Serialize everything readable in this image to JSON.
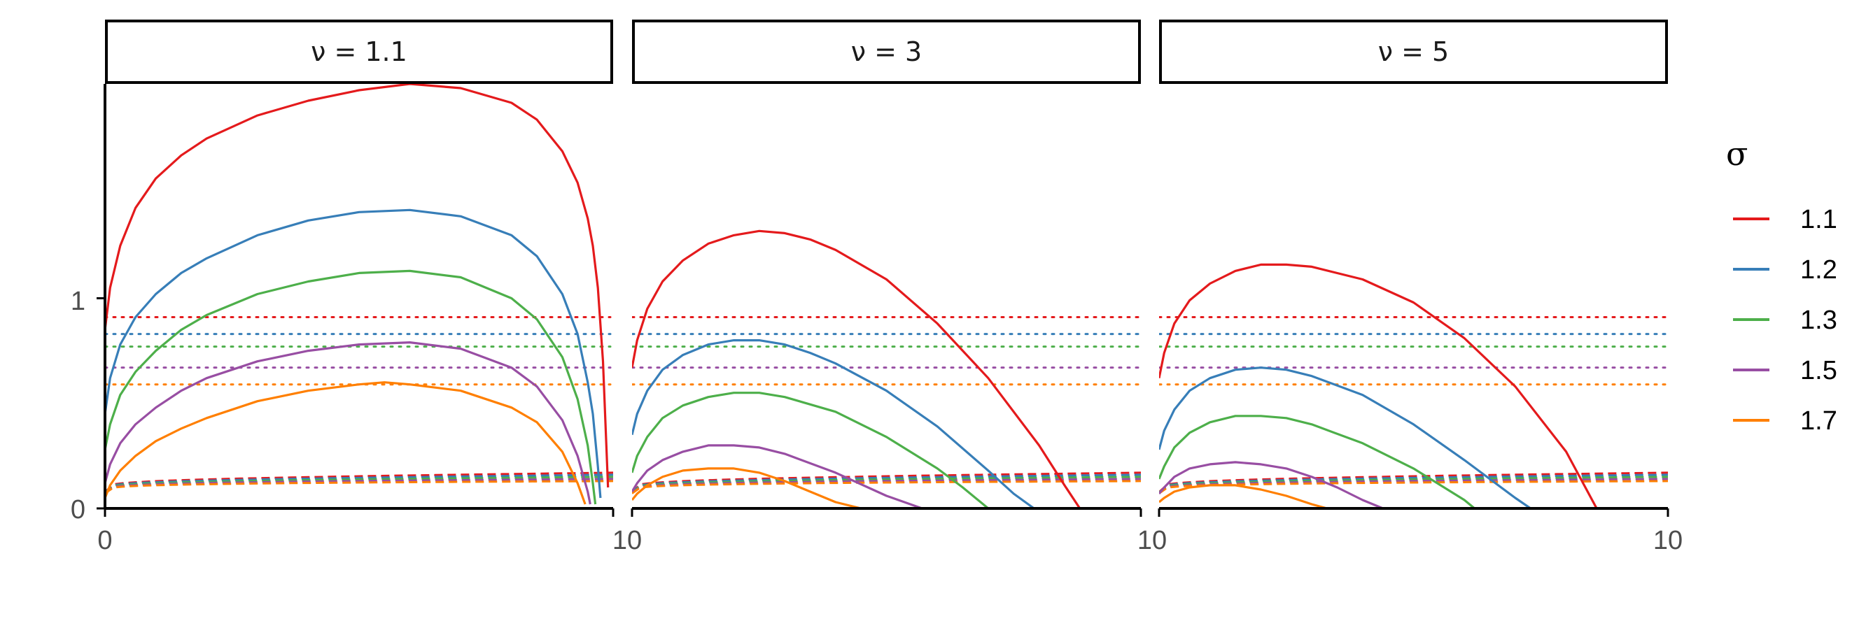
{
  "chart_data": {
    "type": "line",
    "panels": [
      {
        "label": "ν = 1.1",
        "nu": 1.1
      },
      {
        "label": "ν = 3",
        "nu": 3
      },
      {
        "label": "ν = 5",
        "nu": 5
      }
    ],
    "x_ticks_shared": [
      "0",
      "10",
      "10",
      "10",
      "1"
    ],
    "y_ticks": [
      {
        "value": 0,
        "label": "0"
      },
      {
        "value": 1,
        "label": "1"
      }
    ],
    "ylim": [
      0,
      2.02
    ],
    "xlim": [
      0,
      1
    ],
    "legend": {
      "title": "σ",
      "position": "right",
      "entries": [
        {
          "label": "1.1",
          "color": "#E41A1C"
        },
        {
          "label": "1.2",
          "color": "#377EB8"
        },
        {
          "label": "1.3",
          "color": "#4DAF4A"
        },
        {
          "label": "1.5",
          "color": "#984EA3"
        },
        {
          "label": "1.7",
          "color": "#FF7F00"
        }
      ]
    },
    "line_types": [
      "solid",
      "dashed",
      "dotted"
    ],
    "dotted_levels": [
      0.91,
      0.83,
      0.77,
      0.67,
      0.59
    ],
    "dashed_end_values": [
      0.17,
      0.16,
      0.15,
      0.14,
      0.13
    ],
    "series": [
      {
        "panel": 0,
        "sigma": "1.1",
        "style": "solid",
        "x": [
          0.0,
          0.01,
          0.03,
          0.06,
          0.1,
          0.15,
          0.2,
          0.3,
          0.4,
          0.5,
          0.6,
          0.7,
          0.8,
          0.85,
          0.9,
          0.93,
          0.95,
          0.96,
          0.97,
          0.98,
          0.985,
          0.99
        ],
        "y": [
          0.85,
          1.05,
          1.25,
          1.43,
          1.57,
          1.68,
          1.76,
          1.87,
          1.94,
          1.99,
          2.02,
          2.0,
          1.93,
          1.85,
          1.7,
          1.55,
          1.38,
          1.25,
          1.05,
          0.7,
          0.4,
          0.1
        ]
      },
      {
        "panel": 0,
        "sigma": "1.2",
        "style": "solid",
        "x": [
          0.0,
          0.01,
          0.03,
          0.06,
          0.1,
          0.15,
          0.2,
          0.3,
          0.4,
          0.5,
          0.6,
          0.7,
          0.8,
          0.85,
          0.9,
          0.93,
          0.95,
          0.96,
          0.97,
          0.975
        ],
        "y": [
          0.45,
          0.62,
          0.78,
          0.91,
          1.02,
          1.12,
          1.19,
          1.3,
          1.37,
          1.41,
          1.42,
          1.39,
          1.3,
          1.2,
          1.02,
          0.83,
          0.6,
          0.45,
          0.2,
          0.05
        ]
      },
      {
        "panel": 0,
        "sigma": "1.3",
        "style": "solid",
        "x": [
          0.0,
          0.01,
          0.03,
          0.06,
          0.1,
          0.15,
          0.2,
          0.3,
          0.4,
          0.5,
          0.6,
          0.7,
          0.8,
          0.85,
          0.9,
          0.93,
          0.95,
          0.96,
          0.965
        ],
        "y": [
          0.28,
          0.4,
          0.54,
          0.65,
          0.75,
          0.85,
          0.92,
          1.02,
          1.08,
          1.12,
          1.13,
          1.1,
          1.0,
          0.9,
          0.72,
          0.52,
          0.3,
          0.12,
          0.02
        ]
      },
      {
        "panel": 0,
        "sigma": "1.5",
        "style": "solid",
        "x": [
          0.0,
          0.01,
          0.03,
          0.06,
          0.1,
          0.15,
          0.2,
          0.3,
          0.4,
          0.5,
          0.6,
          0.7,
          0.8,
          0.85,
          0.9,
          0.93,
          0.95,
          0.955
        ],
        "y": [
          0.12,
          0.21,
          0.31,
          0.4,
          0.48,
          0.56,
          0.62,
          0.7,
          0.75,
          0.78,
          0.79,
          0.76,
          0.67,
          0.58,
          0.42,
          0.25,
          0.08,
          0.02
        ]
      },
      {
        "panel": 0,
        "sigma": "1.7",
        "style": "solid",
        "x": [
          0.0,
          0.01,
          0.03,
          0.06,
          0.1,
          0.15,
          0.2,
          0.3,
          0.4,
          0.5,
          0.55,
          0.6,
          0.7,
          0.8,
          0.85,
          0.9,
          0.93,
          0.945
        ],
        "y": [
          0.05,
          0.11,
          0.18,
          0.25,
          0.32,
          0.38,
          0.43,
          0.51,
          0.56,
          0.59,
          0.6,
          0.59,
          0.56,
          0.48,
          0.41,
          0.27,
          0.12,
          0.02
        ]
      },
      {
        "panel": 1,
        "sigma": "1.1",
        "style": "solid",
        "x": [
          0.0,
          0.01,
          0.03,
          0.06,
          0.1,
          0.15,
          0.2,
          0.25,
          0.3,
          0.35,
          0.4,
          0.5,
          0.6,
          0.7,
          0.8,
          0.85,
          0.88
        ],
        "y": [
          0.67,
          0.8,
          0.95,
          1.08,
          1.18,
          1.26,
          1.3,
          1.32,
          1.31,
          1.28,
          1.23,
          1.09,
          0.88,
          0.62,
          0.3,
          0.11,
          0.0
        ]
      },
      {
        "panel": 1,
        "sigma": "1.2",
        "style": "solid",
        "x": [
          0.0,
          0.01,
          0.03,
          0.06,
          0.1,
          0.15,
          0.2,
          0.25,
          0.3,
          0.35,
          0.4,
          0.5,
          0.6,
          0.7,
          0.75,
          0.79
        ],
        "y": [
          0.35,
          0.45,
          0.56,
          0.66,
          0.73,
          0.78,
          0.8,
          0.8,
          0.78,
          0.74,
          0.69,
          0.56,
          0.39,
          0.18,
          0.07,
          0.0
        ]
      },
      {
        "panel": 1,
        "sigma": "1.3",
        "style": "solid",
        "x": [
          0.0,
          0.01,
          0.03,
          0.06,
          0.1,
          0.15,
          0.2,
          0.25,
          0.3,
          0.4,
          0.5,
          0.6,
          0.65,
          0.7
        ],
        "y": [
          0.17,
          0.25,
          0.34,
          0.43,
          0.49,
          0.53,
          0.55,
          0.55,
          0.53,
          0.46,
          0.34,
          0.19,
          0.1,
          0.0
        ]
      },
      {
        "panel": 1,
        "sigma": "1.5",
        "style": "solid",
        "x": [
          0.0,
          0.01,
          0.03,
          0.06,
          0.1,
          0.15,
          0.2,
          0.25,
          0.3,
          0.4,
          0.5,
          0.57
        ],
        "y": [
          0.08,
          0.12,
          0.18,
          0.23,
          0.27,
          0.3,
          0.3,
          0.29,
          0.26,
          0.17,
          0.06,
          0.0
        ]
      },
      {
        "panel": 1,
        "sigma": "1.7",
        "style": "solid",
        "x": [
          0.0,
          0.01,
          0.03,
          0.06,
          0.1,
          0.15,
          0.2,
          0.25,
          0.3,
          0.35,
          0.4,
          0.45
        ],
        "y": [
          0.04,
          0.07,
          0.11,
          0.15,
          0.18,
          0.19,
          0.19,
          0.17,
          0.13,
          0.08,
          0.03,
          0.0
        ]
      },
      {
        "panel": 2,
        "sigma": "1.1",
        "style": "solid",
        "x": [
          0.0,
          0.01,
          0.03,
          0.06,
          0.1,
          0.15,
          0.2,
          0.25,
          0.3,
          0.4,
          0.5,
          0.6,
          0.7,
          0.8,
          0.86
        ],
        "y": [
          0.62,
          0.74,
          0.88,
          0.99,
          1.07,
          1.13,
          1.16,
          1.16,
          1.15,
          1.09,
          0.98,
          0.81,
          0.58,
          0.27,
          0.0
        ]
      },
      {
        "panel": 2,
        "sigma": "1.2",
        "style": "solid",
        "x": [
          0.0,
          0.01,
          0.03,
          0.06,
          0.1,
          0.15,
          0.2,
          0.25,
          0.3,
          0.4,
          0.5,
          0.6,
          0.7,
          0.73
        ],
        "y": [
          0.28,
          0.37,
          0.47,
          0.56,
          0.62,
          0.66,
          0.67,
          0.66,
          0.63,
          0.54,
          0.4,
          0.23,
          0.05,
          0.0
        ]
      },
      {
        "panel": 2,
        "sigma": "1.3",
        "style": "solid",
        "x": [
          0.0,
          0.01,
          0.03,
          0.06,
          0.1,
          0.15,
          0.2,
          0.25,
          0.3,
          0.4,
          0.5,
          0.6,
          0.62
        ],
        "y": [
          0.14,
          0.2,
          0.29,
          0.36,
          0.41,
          0.44,
          0.44,
          0.43,
          0.4,
          0.31,
          0.19,
          0.04,
          0.0
        ]
      },
      {
        "panel": 2,
        "sigma": "1.5",
        "style": "solid",
        "x": [
          0.0,
          0.01,
          0.03,
          0.06,
          0.1,
          0.15,
          0.2,
          0.25,
          0.3,
          0.35,
          0.4,
          0.44
        ],
        "y": [
          0.07,
          0.1,
          0.15,
          0.19,
          0.21,
          0.22,
          0.21,
          0.19,
          0.15,
          0.1,
          0.04,
          0.0
        ]
      },
      {
        "panel": 2,
        "sigma": "1.7",
        "style": "solid",
        "x": [
          0.0,
          0.01,
          0.03,
          0.06,
          0.1,
          0.15,
          0.2,
          0.25,
          0.3,
          0.33
        ],
        "y": [
          0.03,
          0.05,
          0.08,
          0.1,
          0.11,
          0.11,
          0.09,
          0.06,
          0.02,
          0.0
        ]
      }
    ]
  }
}
